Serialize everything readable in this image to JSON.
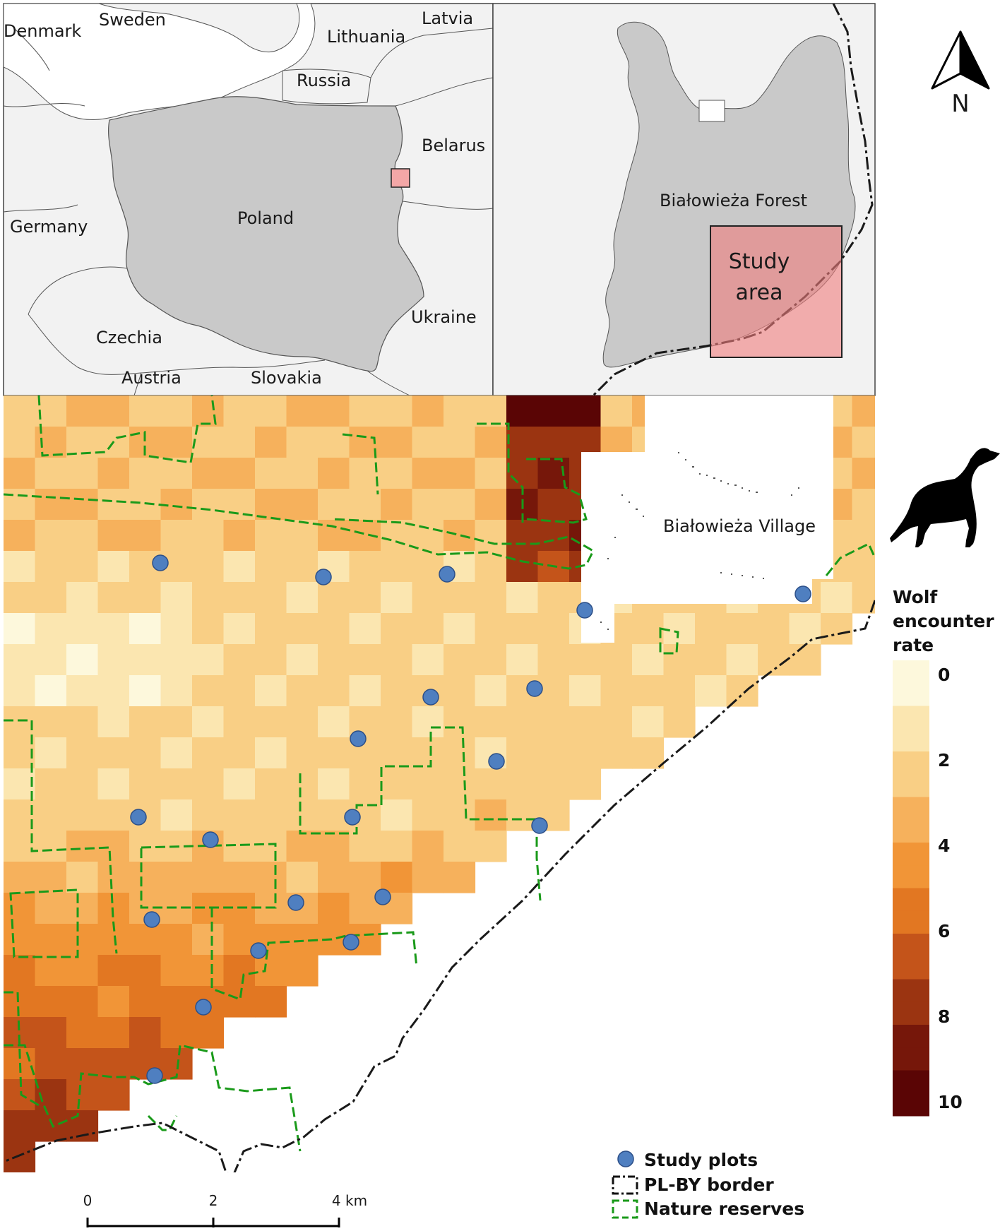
{
  "overview_map": {
    "countries": {
      "denmark": "Denmark",
      "sweden": "Sweden",
      "latvia": "Latvia",
      "lithuania": "Lithuania",
      "russia": "Russia",
      "belarus": "Belarus",
      "germany": "Germany",
      "poland": "Poland",
      "ukraine": "Ukraine",
      "czechia": "Czechia",
      "austria": "Austria",
      "slovakia": "Slovakia"
    }
  },
  "forest_map": {
    "forest_label": "Białowieża Forest",
    "study_area_line1": "Study",
    "study_area_line2": "area"
  },
  "north_arrow": {
    "label": "N",
    "icon": "north-arrow-icon"
  },
  "main_map": {
    "village_label": "Białowieża Village",
    "wolf_icon": "howling-wolf-icon"
  },
  "colorbar": {
    "title_line1": "Wolf",
    "title_line2": "encounter",
    "title_line3": "rate",
    "ticks": [
      "0",
      "2",
      "4",
      "6",
      "8",
      "10"
    ],
    "min": 0,
    "max": 10,
    "colors": [
      "#fdf8dc",
      "#fbe6b0",
      "#f9cf85",
      "#f6b15c",
      "#f19537",
      "#e27722",
      "#c4541a",
      "#9b3411",
      "#76170a",
      "#5a0505"
    ]
  },
  "legend": {
    "plots": "Study plots",
    "border": "PL-BY border",
    "reserves": "Nature reserves",
    "plot_color": "#4f7fc0",
    "reserve_color": "#1a9a1a"
  },
  "scalebar": {
    "ticks": [
      "0",
      "2",
      "4 km"
    ]
  }
}
